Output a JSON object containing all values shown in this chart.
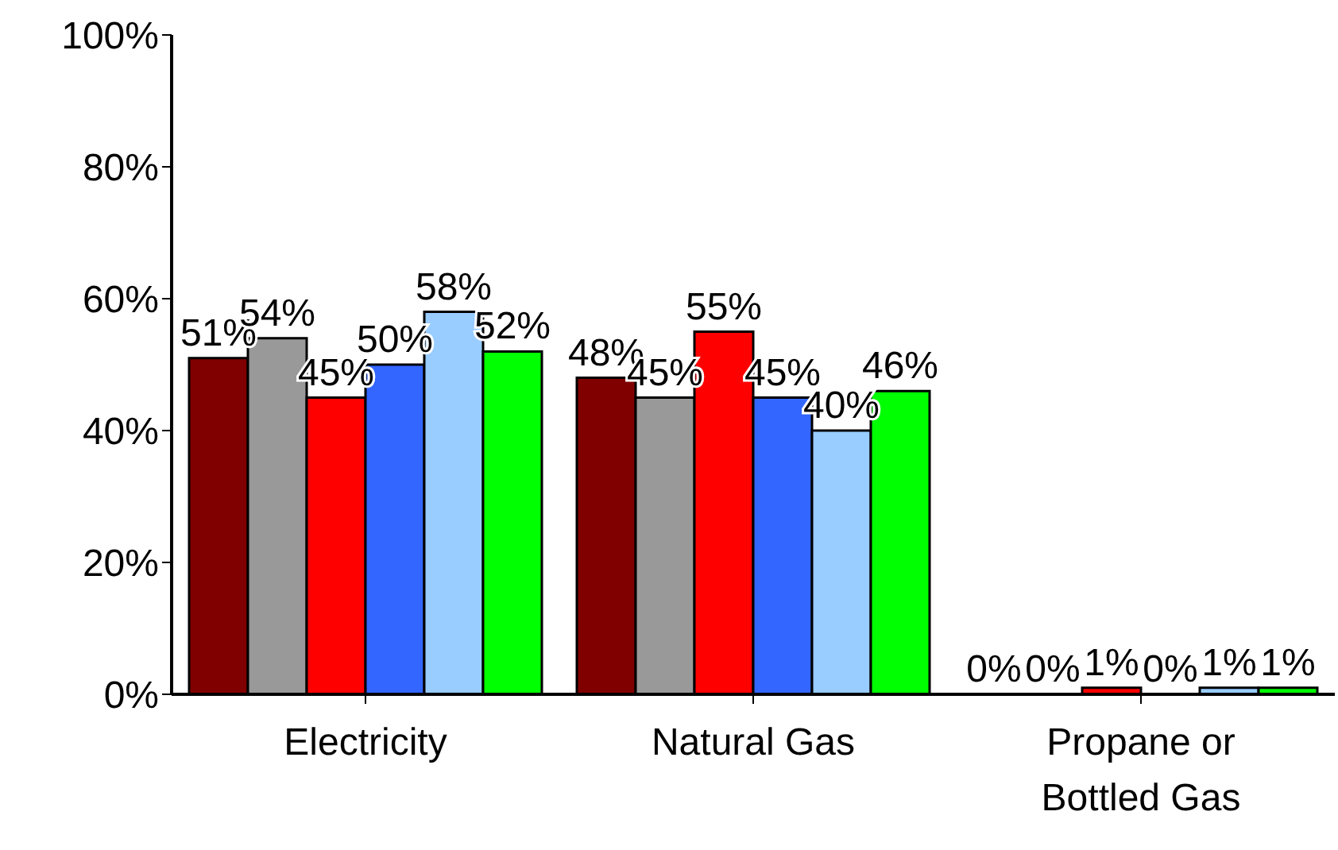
{
  "chart_data": {
    "type": "bar",
    "categories": [
      "Electricity",
      "Natural Gas",
      "Propane or Bottled Gas"
    ],
    "series": [
      {
        "color": "#800000",
        "values": [
          51,
          48,
          0
        ],
        "value_labels": [
          "51%",
          "48%",
          "0%"
        ]
      },
      {
        "color": "#999999",
        "values": [
          54,
          45,
          0
        ],
        "value_labels": [
          "54%",
          "45%",
          "0%"
        ]
      },
      {
        "color": "#ff0000",
        "values": [
          45,
          55,
          1
        ],
        "value_labels": [
          "45%",
          "55%",
          "1%"
        ]
      },
      {
        "color": "#3366ff",
        "values": [
          50,
          45,
          0
        ],
        "value_labels": [
          "50%",
          "45%",
          "0%"
        ]
      },
      {
        "color": "#99ccff",
        "values": [
          58,
          40,
          1
        ],
        "value_labels": [
          "58%",
          "40%",
          "1%"
        ]
      },
      {
        "color": "#00ff00",
        "values": [
          52,
          46,
          1
        ],
        "value_labels": [
          "52%",
          "46%",
          "1%"
        ]
      }
    ],
    "ylim": [
      0,
      100
    ],
    "yticks": [
      {
        "value": 0,
        "label": "0%"
      },
      {
        "value": 20,
        "label": "20%"
      },
      {
        "value": 40,
        "label": "40%"
      },
      {
        "value": 60,
        "label": "60%"
      },
      {
        "value": 80,
        "label": "80%"
      },
      {
        "value": 100,
        "label": "100%"
      }
    ],
    "grid": false,
    "legend": false
  }
}
